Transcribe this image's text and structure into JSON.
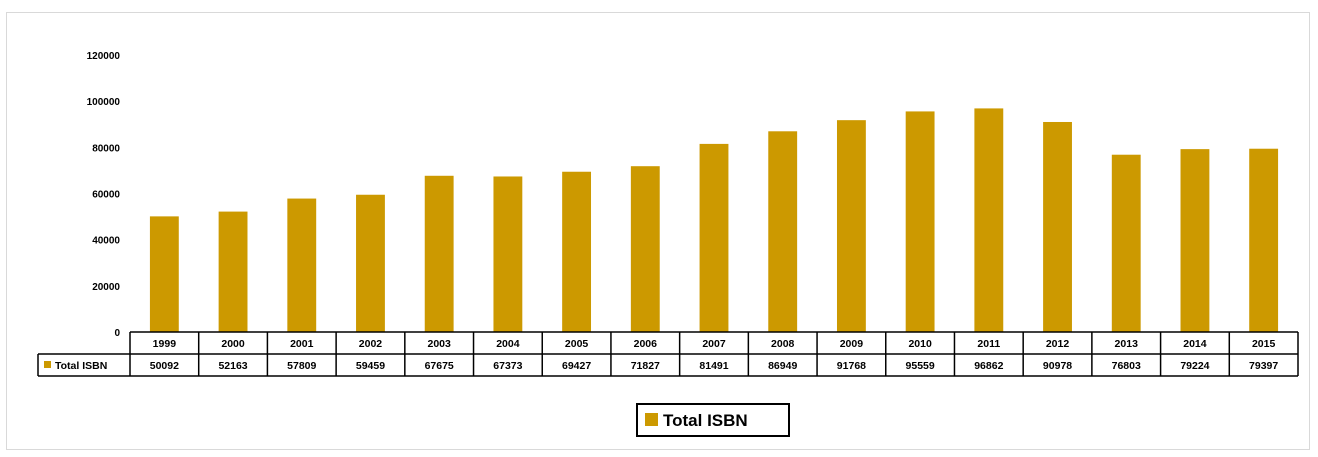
{
  "colors": {
    "bar": "#cc9900",
    "axis": "#000000",
    "frame": "#d9d9d9"
  },
  "legend": {
    "label": "Total ISBN",
    "placement": "bottom-center"
  },
  "chart_data": {
    "type": "bar",
    "title": "",
    "xlabel": "",
    "ylabel": "",
    "ylim": [
      0,
      120000
    ],
    "yticks": [
      0,
      20000,
      40000,
      60000,
      80000,
      100000,
      120000
    ],
    "grid": false,
    "categories": [
      "1999",
      "2000",
      "2001",
      "2002",
      "2003",
      "2004",
      "2005",
      "2006",
      "2007",
      "2008",
      "2009",
      "2010",
      "2011",
      "2012",
      "2013",
      "2014",
      "2015"
    ],
    "series": [
      {
        "name": "Total ISBN",
        "values": [
          50092,
          52163,
          57809,
          59459,
          67675,
          67373,
          69427,
          71827,
          81491,
          86949,
          91768,
          95559,
          96862,
          90978,
          76803,
          79224,
          79397
        ]
      }
    ],
    "data_table": true
  }
}
